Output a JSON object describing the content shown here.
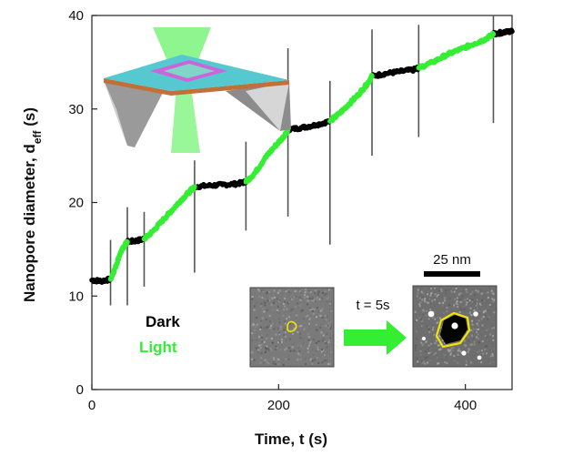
{
  "chart_data": {
    "type": "line",
    "xlabel": "Time, t (s)",
    "ylabel_main": "Nanopore diameter, d",
    "ylabel_sub": "eff",
    "ylabel_unit": " (s)",
    "xlim": [
      0,
      450
    ],
    "ylim": [
      0,
      40
    ],
    "x_ticks": [
      0,
      200,
      400
    ],
    "y_ticks": [
      0,
      10,
      20,
      30,
      40
    ],
    "grid": false,
    "legend": [
      {
        "name": "Dark",
        "color": "#000000"
      },
      {
        "name": "Light",
        "color": "#33ee33"
      }
    ],
    "legend_position": "bottom-left-of-inset",
    "series": [
      {
        "name": "Dark",
        "color": "#000000",
        "segments": [
          [
            [
              0,
              11.7
            ],
            [
              10,
              11.6
            ],
            [
              20,
              11.8
            ]
          ],
          [
            [
              38,
              15.8
            ],
            [
              47,
              15.9
            ],
            [
              56,
              16.1
            ]
          ],
          [
            [
              110,
              21.7
            ],
            [
              125,
              21.8
            ],
            [
              140,
              21.9
            ],
            [
              155,
              22.0
            ],
            [
              165,
              22.2
            ]
          ],
          [
            [
              210,
              27.8
            ],
            [
              225,
              28.0
            ],
            [
              240,
              28.3
            ],
            [
              255,
              28.7
            ]
          ],
          [
            [
              300,
              33.5
            ],
            [
              315,
              33.8
            ],
            [
              330,
              34.0
            ],
            [
              345,
              34.2
            ],
            [
              350,
              34.4
            ]
          ],
          [
            [
              430,
              38.0
            ],
            [
              440,
              38.2
            ],
            [
              450,
              38.3
            ]
          ]
        ]
      },
      {
        "name": "Light",
        "color": "#33ee33",
        "segments": [
          [
            [
              20,
              11.8
            ],
            [
              25,
              13.0
            ],
            [
              30,
              14.5
            ],
            [
              35,
              15.4
            ],
            [
              38,
              15.8
            ]
          ],
          [
            [
              56,
              16.1
            ],
            [
              65,
              16.9
            ],
            [
              75,
              18.0
            ],
            [
              85,
              19.1
            ],
            [
              95,
              20.2
            ],
            [
              105,
              21.2
            ],
            [
              110,
              21.7
            ]
          ],
          [
            [
              165,
              22.2
            ],
            [
              175,
              23.2
            ],
            [
              185,
              24.7
            ],
            [
              195,
              25.9
            ],
            [
              205,
              27.0
            ],
            [
              210,
              27.8
            ]
          ],
          [
            [
              255,
              28.7
            ],
            [
              265,
              29.5
            ],
            [
              275,
              30.5
            ],
            [
              285,
              31.5
            ],
            [
              295,
              32.7
            ],
            [
              300,
              33.5
            ]
          ],
          [
            [
              350,
              34.4
            ],
            [
              365,
              35.0
            ],
            [
              380,
              35.8
            ],
            [
              395,
              36.4
            ],
            [
              410,
              37.0
            ],
            [
              420,
              37.4
            ],
            [
              430,
              38.0
            ]
          ]
        ]
      }
    ],
    "error_bars": [
      {
        "x": 20,
        "low": 9.0,
        "high": 16.0
      },
      {
        "x": 38,
        "low": 9.0,
        "high": 19.5
      },
      {
        "x": 56,
        "low": 11.0,
        "high": 19.0
      },
      {
        "x": 110,
        "low": 12.5,
        "high": 24.5
      },
      {
        "x": 165,
        "low": 17.0,
        "high": 26.5
      },
      {
        "x": 210,
        "low": 18.5,
        "high": 36.5
      },
      {
        "x": 255,
        "low": 15.5,
        "high": 33.0
      },
      {
        "x": 300,
        "low": 25.0,
        "high": 38.5
      },
      {
        "x": 350,
        "low": 27.0,
        "high": 39.0
      },
      {
        "x": 430,
        "low": 28.5,
        "high": 40.5
      }
    ]
  },
  "inset": {
    "transition_label": "t = 5s",
    "scalebar_label": "25 nm"
  },
  "colors": {
    "dark": "#000000",
    "light": "#33ee33",
    "outline": "#f2e400",
    "membrane": "#55c9cf"
  }
}
